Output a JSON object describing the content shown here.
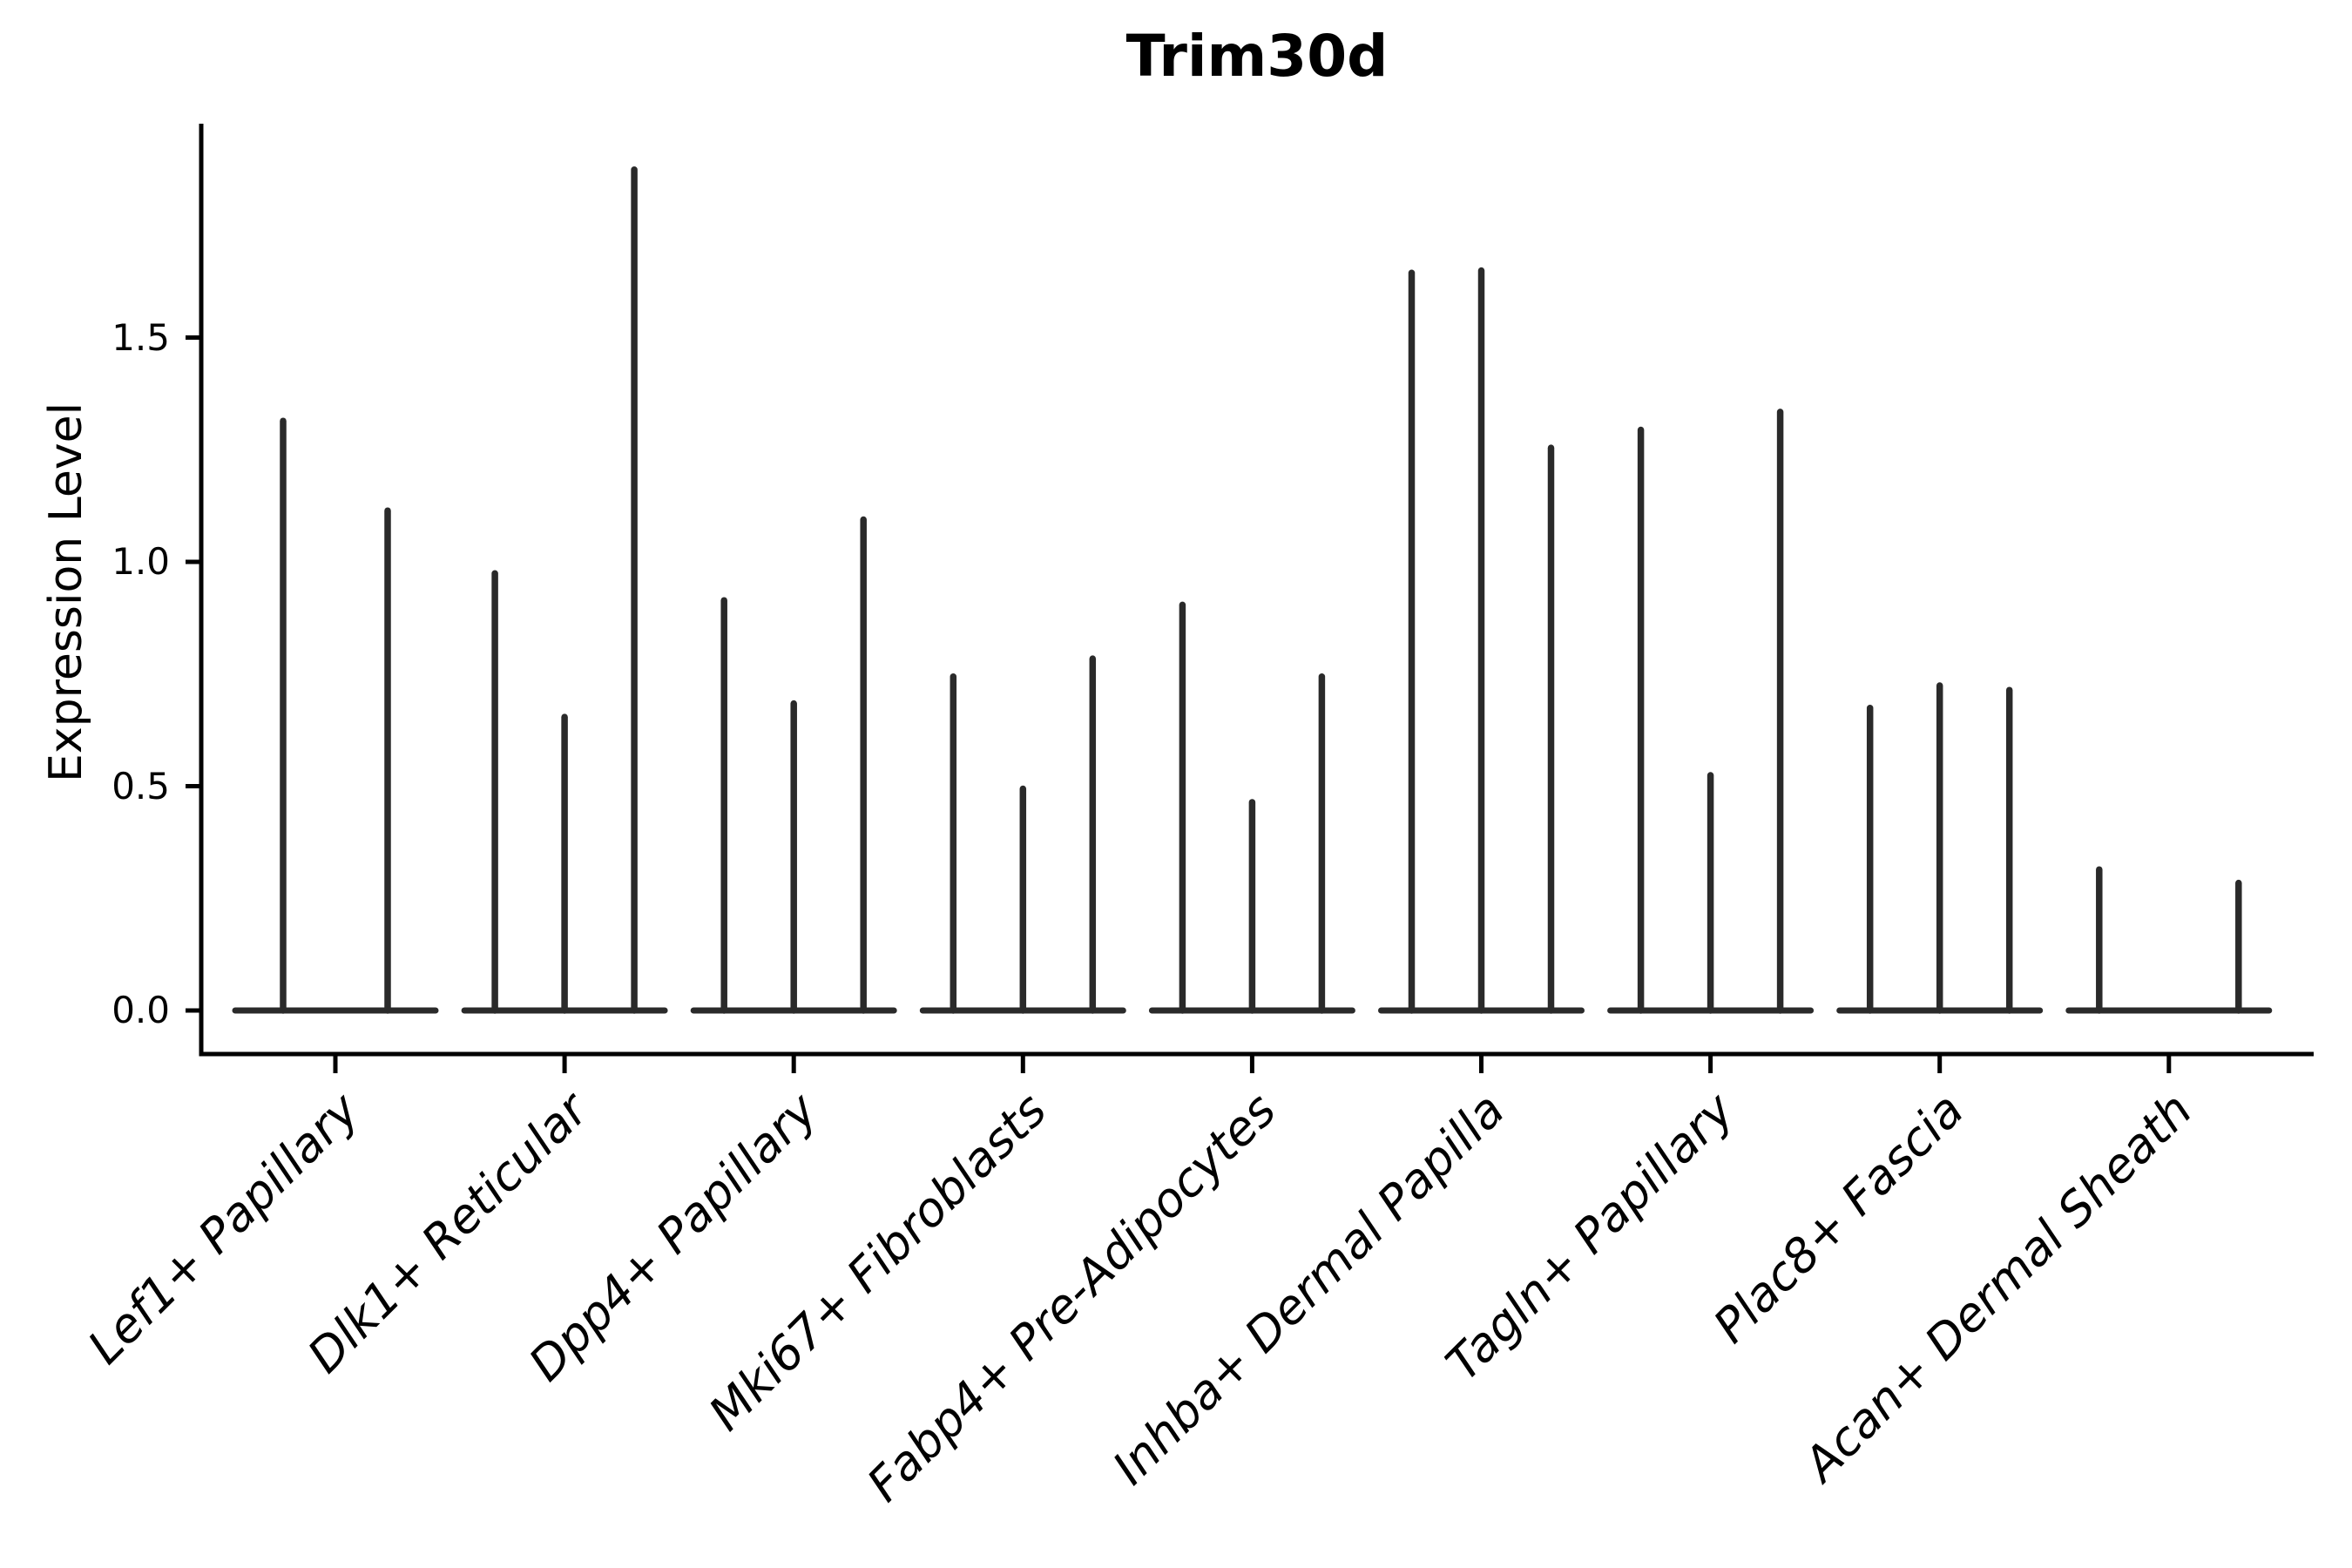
{
  "figure": {
    "background_color": "#ffffff"
  },
  "chart_data": {
    "type": "violin",
    "title": "Trim30d",
    "ylabel": "Expression Level",
    "xlabel": "",
    "grid": false,
    "legend": null,
    "line_color": "#2a2a2a",
    "axis_color": "#000000",
    "ylim": [
      -0.097,
      1.977
    ],
    "yticks": {
      "values": [
        0,
        0.5,
        1.0,
        1.5
      ],
      "labels": [
        "0.0",
        "0.5",
        "1.0",
        "1.5"
      ]
    },
    "categories": [
      "Lef1+ Papillary",
      "Dlk1+ Reticular",
      "Dpp4+ Papillary",
      "Mki67+ Fibroblasts",
      "Fabp4+ Pre-Adipocytes",
      "Inhba+ Dermal Papilla",
      "Tagln+ Papillary",
      "Plac8+ Fascia",
      "Acan+ Dermal Sheath"
    ],
    "baseline_value": 0.0,
    "violin_style": "zero-inflated: wide flat base at 0 with a thin vertical stem rising to the maximum expression value",
    "groups": [
      {
        "label": "Lef1+ Papillary",
        "violin_maxima": [
          1.32,
          1.12
        ]
      },
      {
        "label": "Dlk1+ Reticular",
        "violin_maxima": [
          0.98,
          0.66,
          1.88
        ]
      },
      {
        "label": "Dpp4+ Papillary",
        "violin_maxima": [
          0.92,
          0.69,
          1.1
        ]
      },
      {
        "label": "Mki67+ Fibroblasts",
        "violin_maxima": [
          0.75,
          0.5,
          0.79
        ]
      },
      {
        "label": "Fabp4+ Pre-Adipocytes",
        "violin_maxima": [
          0.91,
          0.47,
          0.75
        ]
      },
      {
        "label": "Inhba+ Dermal Papilla",
        "violin_maxima": [
          1.65,
          1.655,
          1.26
        ]
      },
      {
        "label": "Tagln+ Papillary",
        "violin_maxima": [
          1.3,
          0.53,
          1.34
        ]
      },
      {
        "label": "Plac8+ Fascia",
        "violin_maxima": [
          0.68,
          0.73,
          0.72
        ]
      },
      {
        "label": "Acan+ Dermal Sheath",
        "violin_maxima": [
          0.32,
          0.0,
          0.29
        ]
      }
    ]
  }
}
